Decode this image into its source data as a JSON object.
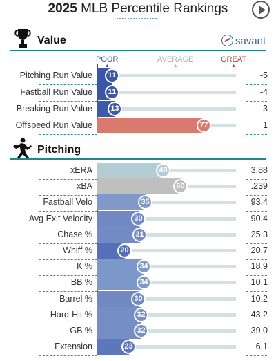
{
  "header": {
    "title_bold": "2025",
    "title_rest": " MLB Percentile Rankings"
  },
  "value_section": {
    "label": "Value",
    "icon": "trophy-icon",
    "brand": "savant"
  },
  "scale": {
    "poor": "POOR",
    "average": "AVERAGE",
    "great": "GREAT"
  },
  "value_rows": [
    {
      "name": "Pitching Run Value",
      "pct": 11,
      "value": "-5",
      "color": "#3a56a8"
    },
    {
      "name": "Fastball Run Value",
      "pct": 11,
      "value": "-4",
      "color": "#3a56a8"
    },
    {
      "name": "Breaking Run Value",
      "pct": 13,
      "value": "-3",
      "color": "#3d5aa9"
    },
    {
      "name": "Offspeed Run Value",
      "pct": 77,
      "value": "1",
      "color": "#d87a6e"
    }
  ],
  "pitching_section": {
    "label": "Pitching",
    "icon": "pitcher-icon"
  },
  "pitching_rows": [
    {
      "name": "xERA",
      "pct": 48,
      "value": "3.88",
      "color": "#b3cdd4"
    },
    {
      "name": "xBA",
      "pct": 60,
      "value": ".239",
      "color": "#bfbfbf"
    },
    {
      "name": "Fastball Velo",
      "pct": 35,
      "value": "93.4",
      "color": "#7f9ac9"
    },
    {
      "name": "Avg Exit Velocity",
      "pct": 30,
      "value": "90.4",
      "color": "#7089c3"
    },
    {
      "name": "Chase %",
      "pct": 31,
      "value": "25.3",
      "color": "#728bc4"
    },
    {
      "name": "Whiff %",
      "pct": 20,
      "value": "20.7",
      "color": "#5470b6"
    },
    {
      "name": "K %",
      "pct": 34,
      "value": "18.9",
      "color": "#7c97c9"
    },
    {
      "name": "BB %",
      "pct": 34,
      "value": "10.1",
      "color": "#7c97c9"
    },
    {
      "name": "Barrel %",
      "pct": 30,
      "value": "10.2",
      "color": "#7089c3"
    },
    {
      "name": "Hard-Hit %",
      "pct": 32,
      "value": "43.2",
      "color": "#758fc6"
    },
    {
      "name": "GB %",
      "pct": 32,
      "value": "39.0",
      "color": "#758fc6"
    },
    {
      "name": "Extension",
      "pct": 23,
      "value": "6.1",
      "color": "#5c77ba"
    }
  ]
}
